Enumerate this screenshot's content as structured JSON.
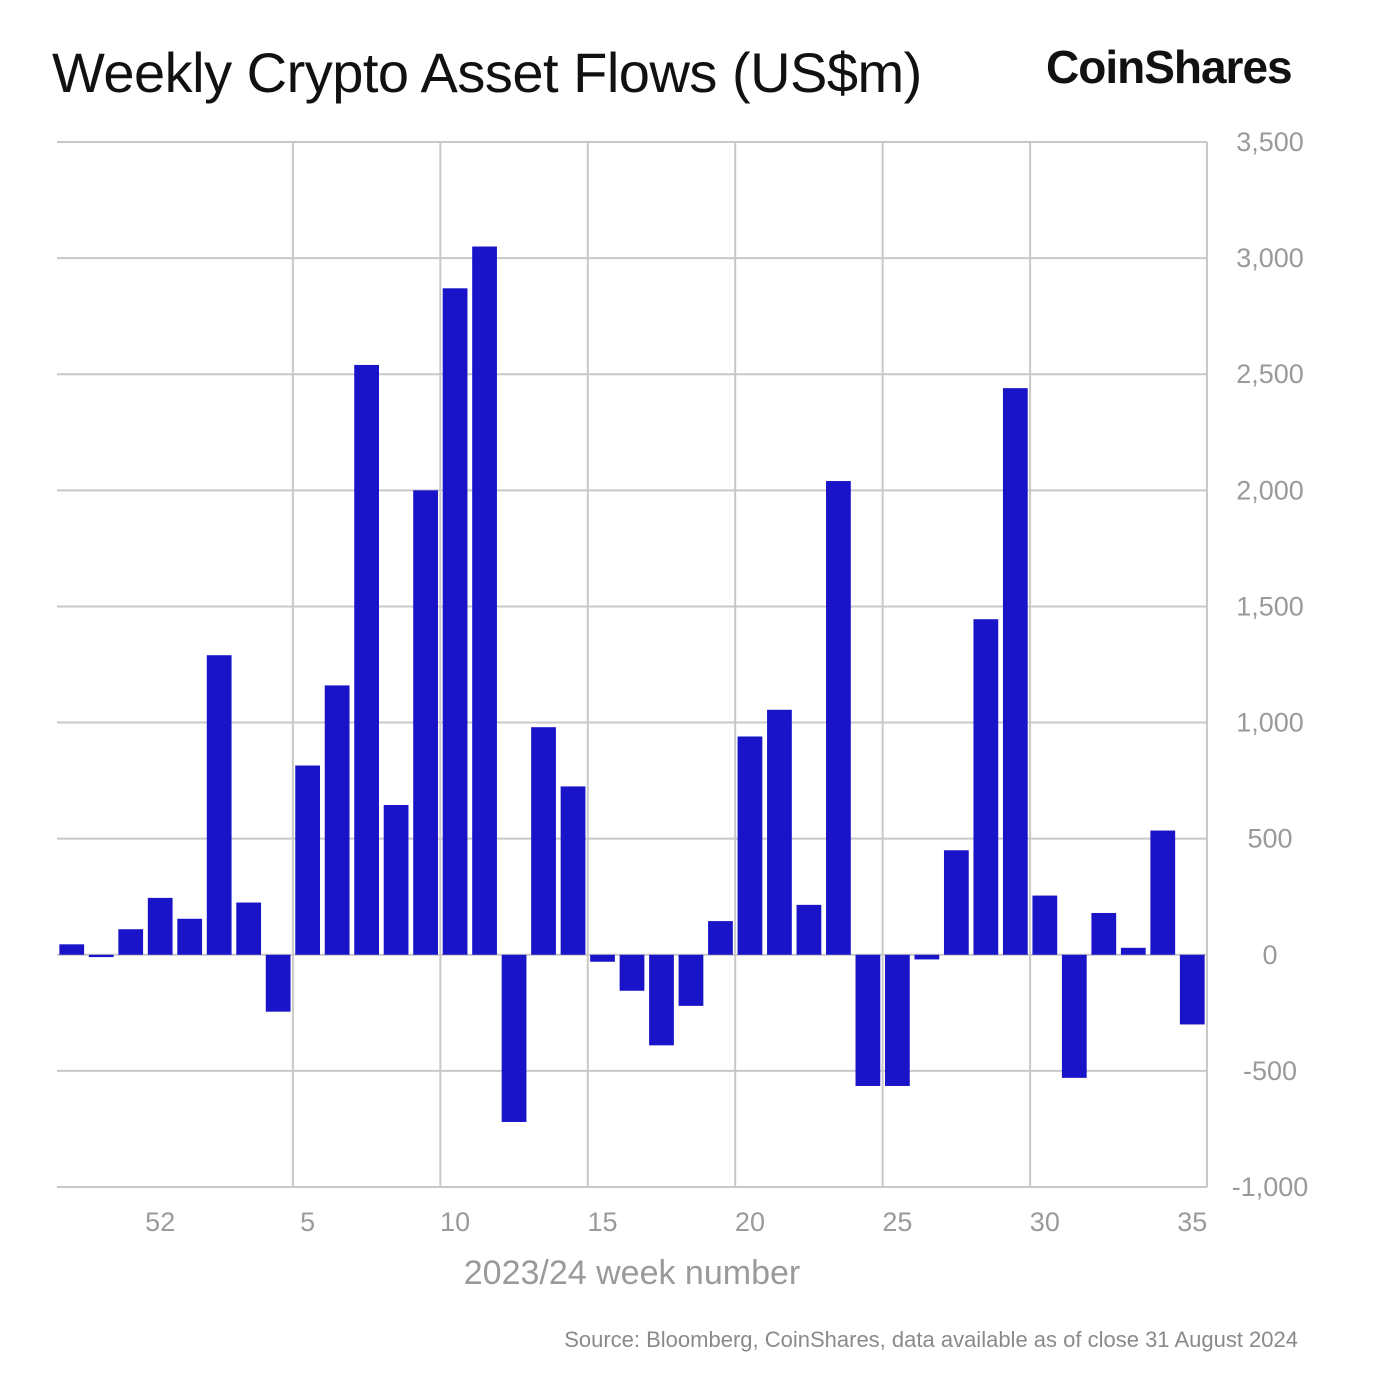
{
  "header": {
    "title": "Weekly Crypto Asset Flows (US$m)",
    "brand": "CoinShares"
  },
  "footer": {
    "source": "Source: Bloomberg, CoinShares, data available as of close 31 August 2024"
  },
  "colors": {
    "bar": "#1a14c8",
    "grid": "#c8c8c8",
    "axis_text": "#9a9a9a"
  },
  "chart_data": {
    "type": "bar",
    "title": "Weekly Crypto Asset Flows (US$m)",
    "xlabel": "2023/24 week number",
    "ylabel": "",
    "ylim": [
      -1000,
      3500
    ],
    "y_ticks": [
      3500,
      3000,
      2500,
      2000,
      1500,
      1000,
      500,
      0,
      -500,
      -1000
    ],
    "y_tick_labels": [
      "3,500",
      "3,000",
      "2,500",
      "2,000",
      "1,500",
      "1,000",
      "500",
      "0",
      "-500",
      "-1,000"
    ],
    "x_ticks": [
      "52",
      "5",
      "10",
      "15",
      "20",
      "25",
      "30",
      "35"
    ],
    "x_tick_positions": [
      52,
      5,
      10,
      15,
      20,
      25,
      30,
      35
    ],
    "grid": true,
    "categories": [
      "49",
      "50",
      "51",
      "52",
      "1",
      "2",
      "3",
      "4",
      "5",
      "6",
      "7",
      "8",
      "9",
      "10",
      "11",
      "12",
      "13",
      "14",
      "15",
      "16",
      "17",
      "18",
      "19",
      "20",
      "21",
      "22",
      "23",
      "24",
      "25",
      "26",
      "27",
      "28",
      "29",
      "30",
      "31",
      "32",
      "33",
      "34",
      "35"
    ],
    "values": [
      45,
      -10,
      110,
      245,
      155,
      1290,
      225,
      -245,
      815,
      1160,
      2540,
      645,
      2000,
      2870,
      3050,
      -720,
      980,
      725,
      -30,
      -155,
      -390,
      -220,
      145,
      940,
      1055,
      215,
      2040,
      -565,
      -565,
      -20,
      450,
      1445,
      2440,
      255,
      -530,
      180,
      30,
      535,
      -300
    ]
  }
}
